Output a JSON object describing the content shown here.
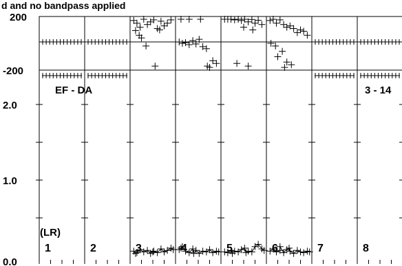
{
  "chart_data": {
    "type": "scatter",
    "title_fragment": "d and no bandpass applied",
    "baseline_label": "EF - DA",
    "scan_label": "3 - 14",
    "polarization_label": "(LR)",
    "phase_panel": {
      "ylim": [
        -200,
        200
      ],
      "tick_labels": [
        "200",
        "-200"
      ]
    },
    "amplitude_panel": {
      "ylim": [
        0.0,
        2.0
      ],
      "tick_labels": [
        "2.0",
        "1.0",
        "0.0"
      ]
    },
    "channels": [
      {
        "label": "1",
        "phase_flat": true,
        "phase_level": 0,
        "amp_level": null
      },
      {
        "label": "2",
        "phase_flat": true,
        "phase_level": 0,
        "amp_level": null
      },
      {
        "label": "3",
        "phase_flat": false,
        "phase_points": [
          [
            0.08,
            170
          ],
          [
            0.15,
            150
          ],
          [
            0.22,
            120
          ],
          [
            0.3,
            185
          ],
          [
            0.38,
            140
          ],
          [
            0.45,
            160
          ],
          [
            0.52,
            175
          ],
          [
            0.6,
            110
          ],
          [
            0.68,
            165
          ],
          [
            0.75,
            130
          ],
          [
            0.82,
            150
          ],
          [
            0.9,
            175
          ],
          [
            0.12,
            95
          ],
          [
            0.25,
            40
          ],
          [
            0.35,
            -20
          ],
          [
            0.55,
            -170
          ],
          [
            0.2,
            60
          ],
          [
            0.65,
            100
          ]
        ],
        "amp_points": [
          [
            0.08,
            0.06
          ],
          [
            0.15,
            0.04
          ],
          [
            0.22,
            0.08
          ],
          [
            0.3,
            0.05
          ],
          [
            0.38,
            0.07
          ],
          [
            0.45,
            0.03
          ],
          [
            0.52,
            0.06
          ],
          [
            0.6,
            0.04
          ],
          [
            0.68,
            0.09
          ],
          [
            0.75,
            0.05
          ],
          [
            0.82,
            0.07
          ],
          [
            0.9,
            0.1
          ],
          [
            0.12,
            0.03
          ],
          [
            0.5,
            0.05
          ],
          [
            0.95,
            0.08
          ]
        ]
      },
      {
        "label": "4",
        "phase_flat": false,
        "phase_points": [
          [
            0.08,
            10
          ],
          [
            0.15,
            0
          ],
          [
            0.22,
            5
          ],
          [
            0.3,
            -10
          ],
          [
            0.38,
            20
          ],
          [
            0.45,
            -5
          ],
          [
            0.52,
            30
          ],
          [
            0.6,
            -25
          ],
          [
            0.68,
            -40
          ],
          [
            0.75,
            -180
          ],
          [
            0.82,
            -130
          ],
          [
            0.9,
            -150
          ],
          [
            0.12,
            185
          ],
          [
            0.3,
            195
          ],
          [
            0.55,
            190
          ],
          [
            0.7,
            -170
          ]
        ],
        "amp_points": [
          [
            0.08,
            0.08
          ],
          [
            0.15,
            0.12
          ],
          [
            0.22,
            0.06
          ],
          [
            0.3,
            0.04
          ],
          [
            0.38,
            0.09
          ],
          [
            0.45,
            0.07
          ],
          [
            0.52,
            0.03
          ],
          [
            0.6,
            0.06
          ],
          [
            0.68,
            0.05
          ],
          [
            0.75,
            0.08
          ],
          [
            0.82,
            0.04
          ],
          [
            0.9,
            0.06
          ],
          [
            0.12,
            0.1
          ],
          [
            0.4,
            0.03
          ],
          [
            0.95,
            0.05
          ]
        ]
      },
      {
        "label": "5",
        "phase_flat": false,
        "phase_points": [
          [
            0.08,
            185
          ],
          [
            0.15,
            190
          ],
          [
            0.22,
            180
          ],
          [
            0.3,
            175
          ],
          [
            0.38,
            188
          ],
          [
            0.45,
            170
          ],
          [
            0.52,
            182
          ],
          [
            0.6,
            160
          ],
          [
            0.68,
            178
          ],
          [
            0.75,
            150
          ],
          [
            0.82,
            172
          ],
          [
            0.9,
            140
          ],
          [
            0.5,
            120
          ],
          [
            0.7,
            100
          ],
          [
            0.35,
            -150
          ],
          [
            0.6,
            -170
          ]
        ],
        "amp_points": [
          [
            0.08,
            0.05
          ],
          [
            0.15,
            0.04
          ],
          [
            0.22,
            0.07
          ],
          [
            0.3,
            0.06
          ],
          [
            0.38,
            0.05
          ],
          [
            0.45,
            0.08
          ],
          [
            0.52,
            0.1
          ],
          [
            0.6,
            0.06
          ],
          [
            0.68,
            0.05
          ],
          [
            0.75,
            0.12
          ],
          [
            0.82,
            0.15
          ],
          [
            0.9,
            0.09
          ],
          [
            0.25,
            0.03
          ],
          [
            0.55,
            0.04
          ],
          [
            0.95,
            0.07
          ]
        ]
      },
      {
        "label": "6",
        "phase_flat": false,
        "phase_points": [
          [
            0.08,
            170
          ],
          [
            0.15,
            180
          ],
          [
            0.22,
            150
          ],
          [
            0.3,
            175
          ],
          [
            0.38,
            140
          ],
          [
            0.45,
            120
          ],
          [
            0.52,
            130
          ],
          [
            0.6,
            110
          ],
          [
            0.68,
            80
          ],
          [
            0.75,
            100
          ],
          [
            0.82,
            90
          ],
          [
            0.9,
            60
          ],
          [
            0.1,
            0
          ],
          [
            0.2,
            -20
          ],
          [
            0.35,
            -60
          ],
          [
            0.25,
            -100
          ],
          [
            0.45,
            -140
          ],
          [
            0.55,
            -160
          ],
          [
            0.4,
            -180
          ]
        ],
        "amp_points": [
          [
            0.08,
            0.06
          ],
          [
            0.15,
            0.09
          ],
          [
            0.22,
            0.05
          ],
          [
            0.3,
            0.07
          ],
          [
            0.38,
            0.04
          ],
          [
            0.45,
            0.08
          ],
          [
            0.52,
            0.06
          ],
          [
            0.6,
            0.03
          ],
          [
            0.68,
            0.07
          ],
          [
            0.75,
            0.05
          ],
          [
            0.82,
            0.04
          ],
          [
            0.9,
            0.06
          ],
          [
            0.3,
            0.12
          ],
          [
            0.5,
            0.1
          ],
          [
            0.95,
            0.05
          ]
        ]
      },
      {
        "label": "7",
        "phase_flat": true,
        "phase_level": 0,
        "amp_level": null
      },
      {
        "label": "8",
        "phase_flat": true,
        "phase_level": 0,
        "amp_level": null
      }
    ]
  }
}
